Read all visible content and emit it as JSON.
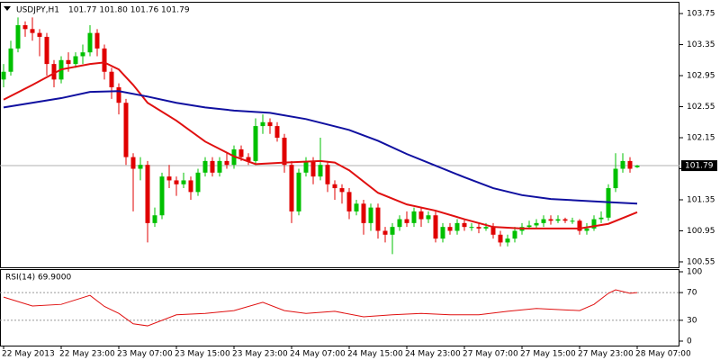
{
  "chart_data": [
    {
      "type": "candlestick",
      "title": "USDJPY,H1",
      "subtitle": "101.77 101.80 101.76 101.79",
      "categories": [
        "22 May 2013",
        null,
        null,
        null,
        null,
        null,
        null,
        null,
        "22 May 23:00",
        null,
        null,
        null,
        null,
        null,
        null,
        null,
        "23 May 07:00",
        null,
        null,
        null,
        null,
        null,
        null,
        null,
        "23 May 15:00",
        null,
        null,
        null,
        null,
        null,
        null,
        null,
        "23 May 23:00",
        null,
        null,
        null,
        null,
        null,
        null,
        null,
        "24 May 07:00",
        null,
        null,
        null,
        null,
        null,
        null,
        null,
        "24 May 15:00",
        null,
        null,
        null,
        null,
        null,
        null,
        null,
        "24 May 23:00",
        null,
        null,
        null,
        null,
        null,
        null,
        null,
        "27 May 07:00",
        null,
        null,
        null,
        null,
        null,
        null,
        null,
        "27 May 15:00",
        null,
        null,
        null,
        null,
        null,
        null,
        null,
        "27 May 23:00",
        null,
        null,
        null,
        null,
        null,
        null,
        null,
        "28 May 07:00"
      ],
      "open": [
        102.9,
        103.0,
        103.3,
        103.6,
        103.55,
        103.5,
        103.45,
        103.1,
        102.9,
        103.15,
        103.1,
        103.2,
        103.25,
        103.5,
        103.3,
        103.0,
        102.8,
        102.6,
        101.9,
        101.75,
        101.8,
        101.05,
        101.15,
        101.65,
        101.6,
        101.55,
        101.6,
        101.45,
        101.7,
        101.85,
        101.7,
        101.85,
        101.8,
        102.0,
        101.9,
        101.85,
        102.3,
        102.35,
        102.3,
        102.15,
        101.8,
        101.2,
        101.7,
        101.85,
        101.65,
        101.8,
        101.55,
        101.5,
        101.45,
        101.2,
        101.3,
        101.05,
        101.25,
        100.95,
        100.9,
        101.0,
        101.1,
        101.05,
        101.2,
        101.1,
        101.15,
        100.85,
        101.0,
        100.95,
        101.05,
        101.0,
        101.0,
        100.98,
        101.0,
        100.9,
        100.8,
        100.85,
        100.95,
        101.0,
        101.02,
        101.05,
        101.1,
        101.08,
        101.1,
        101.08,
        101.08,
        100.95,
        100.98,
        101.1,
        101.12,
        101.5,
        101.75,
        101.85,
        101.77
      ],
      "high": [
        103.1,
        103.4,
        103.7,
        103.65,
        103.7,
        103.55,
        103.5,
        103.15,
        103.2,
        103.25,
        103.25,
        103.35,
        103.6,
        103.55,
        103.35,
        103.05,
        102.85,
        102.65,
        101.95,
        101.9,
        101.85,
        101.25,
        101.7,
        101.8,
        101.65,
        101.7,
        101.65,
        101.75,
        101.9,
        101.9,
        101.9,
        101.95,
        102.05,
        102.05,
        101.95,
        102.4,
        102.45,
        102.4,
        102.35,
        102.2,
        101.85,
        101.75,
        101.9,
        101.9,
        102.15,
        101.85,
        101.6,
        101.55,
        101.5,
        101.35,
        101.35,
        101.3,
        101.3,
        101.0,
        101.05,
        101.15,
        101.2,
        101.25,
        101.25,
        101.2,
        101.2,
        101.05,
        101.05,
        101.1,
        101.1,
        101.05,
        101.05,
        101.05,
        101.05,
        100.95,
        100.9,
        101.0,
        101.05,
        101.08,
        101.1,
        101.15,
        101.15,
        101.15,
        101.12,
        101.12,
        101.1,
        101.05,
        101.15,
        101.2,
        101.55,
        101.95,
        101.95,
        101.9,
        101.8
      ],
      "low": [
        102.8,
        102.95,
        103.25,
        103.45,
        103.4,
        103.2,
        102.95,
        102.8,
        102.85,
        103.0,
        103.05,
        103.1,
        103.2,
        103.2,
        102.9,
        102.65,
        102.45,
        101.8,
        101.2,
        101.6,
        100.8,
        101.0,
        101.1,
        101.5,
        101.4,
        101.5,
        101.35,
        101.4,
        101.65,
        101.65,
        101.65,
        101.75,
        101.75,
        101.85,
        101.8,
        101.8,
        102.2,
        102.2,
        102.1,
        101.7,
        101.05,
        101.15,
        101.65,
        101.55,
        101.6,
        101.45,
        101.35,
        101.3,
        101.1,
        101.15,
        100.9,
        100.95,
        100.85,
        100.8,
        100.65,
        100.95,
        101.0,
        101.0,
        101.0,
        101.05,
        100.8,
        100.8,
        100.9,
        100.9,
        100.95,
        100.95,
        100.92,
        100.95,
        100.85,
        100.75,
        100.75,
        100.8,
        100.9,
        100.97,
        100.98,
        101.0,
        101.03,
        101.05,
        101.05,
        101.04,
        100.9,
        100.9,
        100.95,
        101.05,
        101.08,
        101.45,
        101.7,
        101.7,
        101.76
      ],
      "close": [
        103.0,
        103.3,
        103.6,
        103.55,
        103.5,
        103.45,
        103.1,
        102.9,
        103.15,
        103.1,
        103.2,
        103.25,
        103.5,
        103.3,
        103.0,
        102.8,
        102.6,
        101.9,
        101.75,
        101.8,
        101.05,
        101.15,
        101.65,
        101.6,
        101.55,
        101.6,
        101.45,
        101.7,
        101.85,
        101.7,
        101.85,
        101.8,
        102.0,
        101.9,
        101.85,
        102.3,
        102.35,
        102.3,
        102.15,
        101.8,
        101.2,
        101.7,
        101.85,
        101.65,
        101.8,
        101.55,
        101.5,
        101.45,
        101.2,
        101.3,
        101.05,
        101.25,
        100.95,
        100.9,
        101.0,
        101.1,
        101.05,
        101.2,
        101.1,
        101.15,
        100.85,
        101.0,
        100.95,
        101.05,
        101.0,
        101.0,
        100.98,
        101.0,
        100.9,
        100.8,
        100.85,
        100.95,
        101.0,
        101.02,
        101.05,
        101.1,
        101.08,
        101.1,
        101.08,
        101.08,
        100.95,
        100.98,
        101.1,
        101.12,
        101.5,
        101.75,
        101.85,
        101.75,
        101.79
      ],
      "up_color": "#00c000",
      "down_color": "#e00000",
      "series": [
        {
          "color": "#e01010",
          "x": [
            0,
            4,
            8,
            12,
            14,
            16,
            18,
            20,
            24,
            28,
            32,
            35,
            39,
            44,
            46,
            48,
            52,
            56,
            60,
            64,
            68,
            72,
            76,
            80,
            84,
            88
          ],
          "values": [
            102.64,
            102.83,
            103.03,
            103.1,
            103.12,
            103.03,
            102.83,
            102.6,
            102.37,
            102.1,
            101.91,
            101.81,
            101.83,
            101.85,
            101.83,
            101.73,
            101.44,
            101.29,
            101.21,
            101.1,
            101.0,
            100.98,
            100.98,
            100.98,
            101.04,
            101.19
          ]
        },
        {
          "color": "#1010a0",
          "x": [
            0,
            8,
            12,
            16,
            20,
            24,
            28,
            32,
            37,
            42,
            48,
            52,
            56,
            60,
            64,
            68,
            72,
            76,
            80,
            84,
            88
          ],
          "values": [
            102.54,
            102.66,
            102.74,
            102.75,
            102.68,
            102.6,
            102.54,
            102.5,
            102.47,
            102.39,
            102.25,
            102.11,
            101.94,
            101.79,
            101.64,
            101.5,
            101.41,
            101.36,
            101.34,
            101.32,
            101.3
          ]
        }
      ],
      "last_price": 101.79,
      "ylim": [
        100.48,
        103.89
      ],
      "yticks": [
        103.75,
        103.35,
        102.95,
        102.55,
        102.15,
        101.75,
        101.35,
        100.95,
        100.55
      ]
    },
    {
      "type": "line",
      "title": "RSI(14) 69.9000",
      "series": [
        {
          "color": "#e01010",
          "x": [
            0,
            4,
            8,
            12,
            14,
            16,
            18,
            20,
            24,
            28,
            32,
            36,
            39,
            42,
            46,
            50,
            54,
            58,
            62,
            66,
            70,
            74,
            78,
            80,
            82,
            84,
            85,
            87,
            88
          ],
          "values": [
            63.5,
            50.6,
            53,
            66,
            50,
            40,
            25,
            22,
            38,
            40,
            44,
            56,
            44,
            40,
            43,
            35,
            38,
            40,
            38,
            38,
            43,
            47,
            45,
            44,
            53,
            69,
            74,
            69,
            70
          ]
        }
      ],
      "levels": [
        70,
        30
      ],
      "ylim": [
        -6.5,
        102.6
      ],
      "yticks": [
        100,
        70,
        30,
        0
      ]
    }
  ]
}
